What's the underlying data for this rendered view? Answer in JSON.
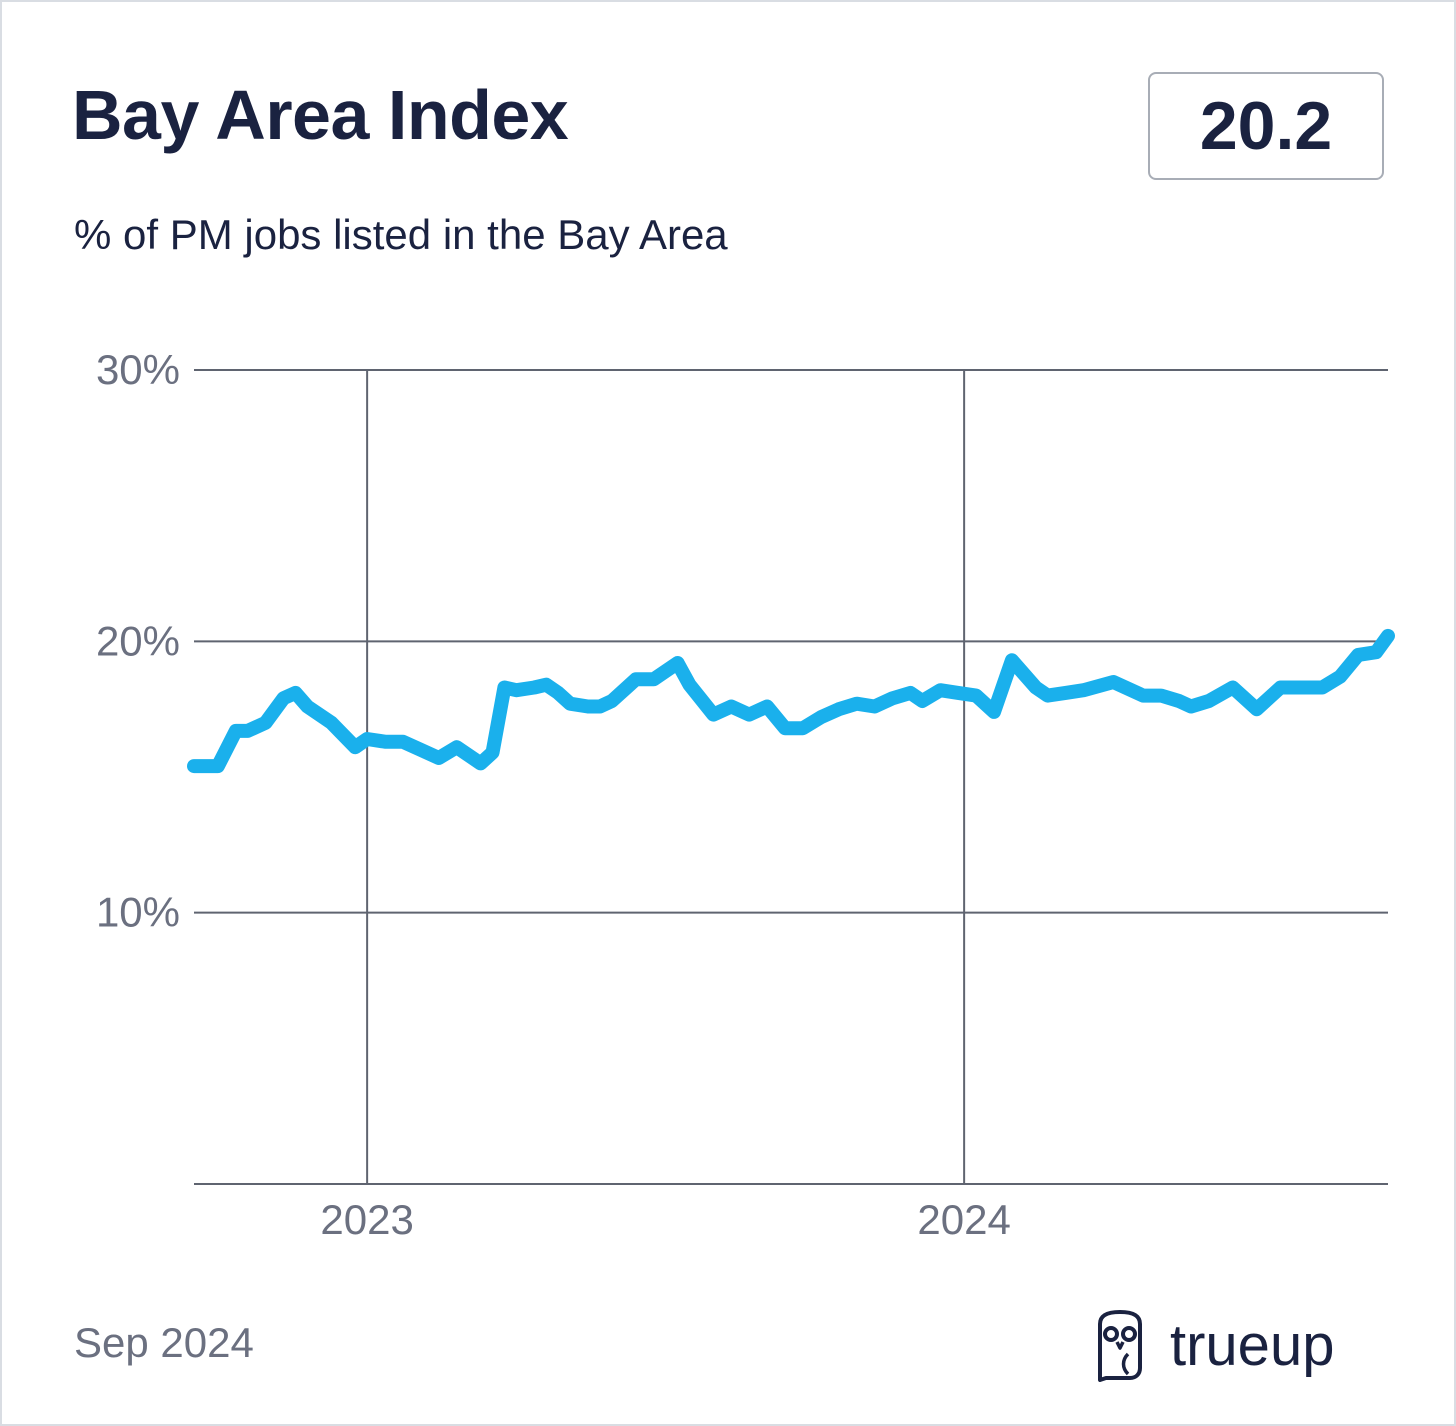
{
  "header": {
    "title": "Bay Area Index",
    "current_value": "20.2",
    "subtitle": "% of PM jobs listed in the Bay Area"
  },
  "footer": {
    "date": "Sep 2024",
    "brand": "trueup",
    "logo_icon": "owl-icon"
  },
  "colors": {
    "line": "#1ab0ec",
    "grid": "#5f6470",
    "text_dark": "#1a2240",
    "text_muted": "#6b7080"
  },
  "chart_data": {
    "type": "line",
    "title": "Bay Area Index",
    "subtitle": "% of PM jobs listed in the Bay Area",
    "xlabel": "",
    "ylabel": "",
    "ylim": [
      0,
      30
    ],
    "xlim": [
      2022.71,
      2024.71
    ],
    "y_ticks": [
      {
        "value": 10,
        "label": "10%"
      },
      {
        "value": 20,
        "label": "20%"
      },
      {
        "value": 30,
        "label": "30%"
      }
    ],
    "x_ticks": [
      {
        "value": 2023,
        "label": "2023"
      },
      {
        "value": 2024,
        "label": "2024"
      }
    ],
    "grid": true,
    "series": [
      {
        "x": [
          2022.71,
          2022.75,
          2022.78,
          2022.8,
          2022.83,
          2022.86,
          2022.88,
          2022.9,
          2022.94,
          2022.98,
          2023.0,
          2023.03,
          2023.06,
          2023.09,
          2023.12,
          2023.15,
          2023.19,
          2023.21,
          2023.23,
          2023.25,
          2023.28,
          2023.3,
          2023.32,
          2023.34,
          2023.37,
          2023.39,
          2023.41,
          2023.45,
          2023.48,
          2023.52,
          2023.54,
          2023.58,
          2023.61,
          2023.64,
          2023.67,
          2023.7,
          2023.73,
          2023.76,
          2023.79,
          2023.82,
          2023.85,
          2023.88,
          2023.91,
          2023.93,
          2023.96,
          2023.99,
          2024.02,
          2024.05,
          2024.08,
          2024.12,
          2024.14,
          2024.17,
          2024.2,
          2024.25,
          2024.3,
          2024.33,
          2024.36,
          2024.38,
          2024.41,
          2024.45,
          2024.49,
          2024.53,
          2024.56,
          2024.6,
          2024.63,
          2024.66,
          2024.69,
          2024.71
        ],
        "values": [
          15.4,
          15.4,
          16.7,
          16.7,
          17.0,
          17.9,
          18.1,
          17.6,
          17.0,
          16.1,
          16.4,
          16.3,
          16.3,
          16.0,
          15.7,
          16.1,
          15.5,
          15.9,
          18.3,
          18.2,
          18.3,
          18.4,
          18.1,
          17.7,
          17.6,
          17.6,
          17.8,
          18.6,
          18.6,
          19.2,
          18.4,
          17.3,
          17.6,
          17.3,
          17.6,
          16.8,
          16.8,
          17.2,
          17.5,
          17.7,
          17.6,
          17.9,
          18.1,
          17.8,
          18.2,
          18.1,
          18.0,
          17.4,
          19.3,
          18.3,
          18.0,
          18.1,
          18.2,
          18.5,
          18.0,
          18.0,
          17.8,
          17.6,
          17.8,
          18.3,
          17.5,
          18.3,
          18.3,
          18.3,
          18.7,
          19.5,
          19.6,
          20.2
        ]
      }
    ]
  }
}
